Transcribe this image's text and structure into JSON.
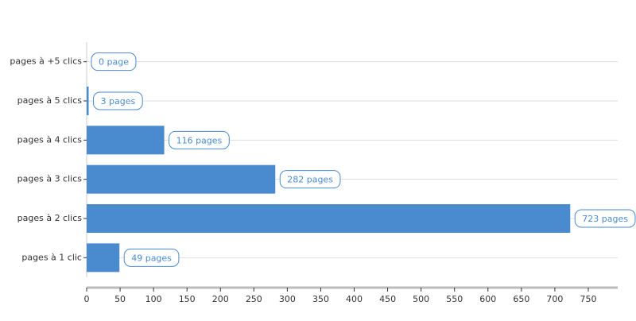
{
  "chart_data": {
    "type": "hbar",
    "categories": [
      "pages à +5 clics",
      "pages à 5 clics",
      "pages à 4 clics",
      "pages à 3 clics",
      "pages à 2 clics",
      "pages à 1 clic"
    ],
    "values": [
      0,
      3,
      116,
      282,
      723,
      49
    ],
    "value_labels": [
      "0 page",
      "3 pages",
      "116 pages",
      "282 pages",
      "723 pages",
      "49 pages"
    ],
    "color": "#4a8bcf",
    "xlim": [
      0,
      794
    ],
    "xticks": [
      0,
      50,
      100,
      150,
      200,
      250,
      300,
      350,
      400,
      450,
      500,
      550,
      600,
      650,
      700,
      750
    ],
    "grid": true
  }
}
